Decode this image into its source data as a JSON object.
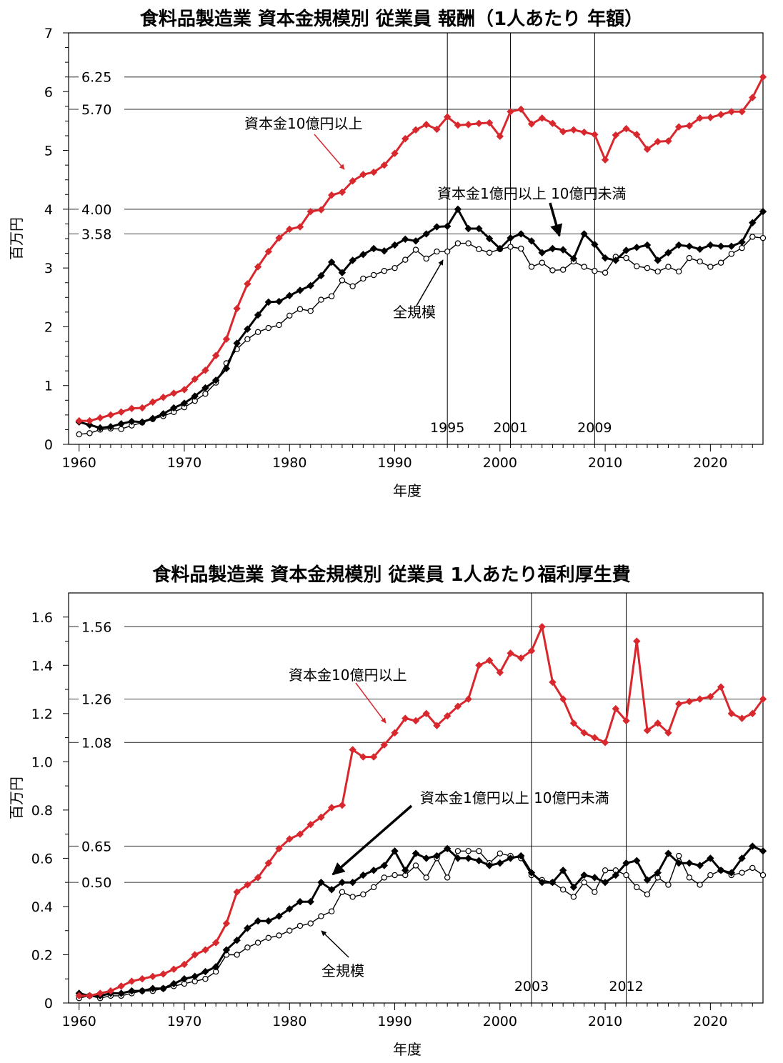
{
  "colors": {
    "red": "#d8282e",
    "black": "#000000",
    "ref_line": "#555555"
  },
  "chart_data": [
    {
      "type": "line",
      "title": "食料品製造業 資本金規模別 従業員 報酬（1人あたり 年額）",
      "xlabel": "年度",
      "ylabel": "百万円",
      "xlim": [
        1959,
        2025
      ],
      "ylim": [
        0,
        7
      ],
      "x_ticks": [
        1960,
        1970,
        1980,
        1990,
        2000,
        2010,
        2020
      ],
      "y_ticks": [
        0,
        1,
        2,
        3,
        4,
        5,
        6,
        7
      ],
      "y_tick_labels": [
        "0",
        "1",
        "2",
        "3",
        "4",
        "5",
        "6",
        "7"
      ],
      "hlines": [
        {
          "value": 6.25,
          "label": "6.25"
        },
        {
          "value": 5.7,
          "label": "5.70"
        },
        {
          "value": 4.0,
          "label": "4.00"
        },
        {
          "value": 3.58,
          "label": "3.58"
        }
      ],
      "vlines": [
        {
          "year": 1995,
          "label": "1995"
        },
        {
          "year": 2001,
          "label": "2001"
        },
        {
          "year": 2009,
          "label": "2009"
        }
      ],
      "x_start": 1960,
      "series": [
        {
          "name": "資本金10億円以上",
          "style": "red",
          "values": [
            0.4,
            0.4,
            0.45,
            0.5,
            0.55,
            0.61,
            0.62,
            0.72,
            0.8,
            0.87,
            0.93,
            1.11,
            1.26,
            1.51,
            1.79,
            2.31,
            2.73,
            3.02,
            3.28,
            3.51,
            3.66,
            3.7,
            3.96,
            3.99,
            4.24,
            4.29,
            4.48,
            4.59,
            4.63,
            4.75,
            4.95,
            5.2,
            5.35,
            5.44,
            5.36,
            5.57,
            5.43,
            5.44,
            5.46,
            5.47,
            5.24,
            5.66,
            5.7,
            5.45,
            5.55,
            5.46,
            5.32,
            5.35,
            5.31,
            5.27,
            4.84,
            5.26,
            5.37,
            5.27,
            5.02,
            5.15,
            5.16,
            5.4,
            5.42,
            5.55,
            5.56,
            5.61,
            5.66,
            5.66,
            5.9,
            6.25
          ]
        },
        {
          "name": "資本金1億円以上 10億円未満",
          "style": "black",
          "values": [
            0.38,
            0.33,
            0.28,
            0.3,
            0.35,
            0.39,
            0.38,
            0.44,
            0.52,
            0.62,
            0.7,
            0.82,
            0.96,
            1.09,
            1.29,
            1.72,
            1.96,
            2.2,
            2.42,
            2.43,
            2.53,
            2.62,
            2.7,
            2.87,
            3.1,
            2.92,
            3.13,
            3.23,
            3.33,
            3.29,
            3.39,
            3.49,
            3.46,
            3.58,
            3.7,
            3.71,
            4.0,
            3.67,
            3.67,
            3.5,
            3.33,
            3.51,
            3.58,
            3.46,
            3.26,
            3.33,
            3.31,
            3.16,
            3.58,
            3.4,
            3.17,
            3.13,
            3.3,
            3.35,
            3.39,
            3.13,
            3.26,
            3.39,
            3.37,
            3.32,
            3.39,
            3.37,
            3.37,
            3.44,
            3.77,
            3.96
          ]
        },
        {
          "name": "全規模",
          "style": "open",
          "values": [
            0.17,
            0.19,
            0.25,
            0.27,
            0.26,
            0.32,
            0.37,
            0.43,
            0.48,
            0.55,
            0.63,
            0.74,
            0.86,
            1.05,
            1.38,
            1.62,
            1.79,
            1.91,
            1.98,
            2.03,
            2.19,
            2.3,
            2.27,
            2.46,
            2.52,
            2.79,
            2.69,
            2.82,
            2.88,
            2.95,
            3.0,
            3.14,
            3.31,
            3.16,
            3.28,
            3.28,
            3.42,
            3.42,
            3.32,
            3.26,
            3.32,
            3.36,
            3.33,
            3.02,
            3.09,
            2.96,
            2.97,
            3.11,
            3.02,
            2.95,
            2.92,
            3.19,
            3.17,
            3.03,
            3.0,
            2.94,
            3.02,
            2.94,
            3.17,
            3.11,
            3.02,
            3.09,
            3.24,
            3.34,
            3.53,
            3.51
          ]
        }
      ],
      "annotations": [
        {
          "text": "資本金10億円以上",
          "style": "red"
        },
        {
          "text": "資本金1億円以上 10億円未満",
          "style": "black"
        },
        {
          "text": "全規模",
          "style": "black"
        }
      ]
    },
    {
      "type": "line",
      "title": "食料品製造業 資本金規模別 従業員 1人あたり福利厚生費",
      "xlabel": "年度",
      "ylabel": "百万円",
      "xlim": [
        1959,
        2025
      ],
      "ylim": [
        0,
        1.7
      ],
      "x_ticks": [
        1960,
        1970,
        1980,
        1990,
        2000,
        2010,
        2020
      ],
      "y_ticks": [
        0,
        0.2,
        0.4,
        0.6,
        0.8,
        1.0,
        1.2,
        1.4,
        1.6
      ],
      "y_tick_labels": [
        "0",
        "0.2",
        "0.4",
        "0.6",
        "0.8",
        "1.0",
        "1.2",
        "1.4",
        "1.6"
      ],
      "hlines": [
        {
          "value": 1.56,
          "label": "1.56"
        },
        {
          "value": 1.26,
          "label": "1.26"
        },
        {
          "value": 1.08,
          "label": "1.08"
        },
        {
          "value": 0.65,
          "label": "0.65"
        },
        {
          "value": 0.5,
          "label": "0.50"
        }
      ],
      "vlines": [
        {
          "year": 2003,
          "label": "2003"
        },
        {
          "year": 2012,
          "label": "2012"
        }
      ],
      "x_start": 1960,
      "series": [
        {
          "name": "資本金10億円以上",
          "style": "red",
          "values": [
            0.03,
            0.03,
            0.04,
            0.05,
            0.07,
            0.09,
            0.1,
            0.11,
            0.12,
            0.14,
            0.16,
            0.2,
            0.22,
            0.25,
            0.33,
            0.46,
            0.49,
            0.52,
            0.58,
            0.64,
            0.68,
            0.7,
            0.74,
            0.77,
            0.81,
            0.82,
            1.05,
            1.02,
            1.02,
            1.07,
            1.12,
            1.18,
            1.17,
            1.2,
            1.15,
            1.19,
            1.23,
            1.26,
            1.4,
            1.42,
            1.37,
            1.45,
            1.43,
            1.46,
            1.56,
            1.33,
            1.26,
            1.16,
            1.12,
            1.1,
            1.08,
            1.22,
            1.17,
            1.5,
            1.13,
            1.16,
            1.12,
            1.24,
            1.25,
            1.26,
            1.27,
            1.31,
            1.2,
            1.18,
            1.2,
            1.26
          ]
        },
        {
          "name": "資本金1億円以上 10億円未満",
          "style": "black",
          "values": [
            0.04,
            0.03,
            0.03,
            0.04,
            0.04,
            0.05,
            0.05,
            0.06,
            0.06,
            0.08,
            0.1,
            0.11,
            0.13,
            0.15,
            0.22,
            0.26,
            0.31,
            0.34,
            0.34,
            0.36,
            0.39,
            0.42,
            0.42,
            0.5,
            0.47,
            0.5,
            0.5,
            0.53,
            0.55,
            0.57,
            0.63,
            0.55,
            0.62,
            0.6,
            0.61,
            0.64,
            0.6,
            0.6,
            0.59,
            0.57,
            0.58,
            0.6,
            0.61,
            0.54,
            0.5,
            0.5,
            0.55,
            0.48,
            0.53,
            0.52,
            0.5,
            0.53,
            0.58,
            0.59,
            0.51,
            0.54,
            0.62,
            0.58,
            0.58,
            0.57,
            0.6,
            0.55,
            0.54,
            0.6,
            0.65,
            0.63
          ]
        },
        {
          "name": "全規模",
          "style": "open",
          "values": [
            0.02,
            0.03,
            0.02,
            0.03,
            0.03,
            0.04,
            0.05,
            0.05,
            0.06,
            0.07,
            0.08,
            0.09,
            0.1,
            0.13,
            0.2,
            0.2,
            0.23,
            0.25,
            0.27,
            0.28,
            0.3,
            0.32,
            0.33,
            0.36,
            0.38,
            0.46,
            0.44,
            0.45,
            0.48,
            0.52,
            0.53,
            0.53,
            0.57,
            0.52,
            0.6,
            0.52,
            0.63,
            0.63,
            0.63,
            0.58,
            0.62,
            0.61,
            0.6,
            0.53,
            0.51,
            0.5,
            0.47,
            0.44,
            0.5,
            0.46,
            0.55,
            0.55,
            0.53,
            0.48,
            0.45,
            0.52,
            0.49,
            0.61,
            0.52,
            0.49,
            0.53,
            0.55,
            0.53,
            0.54,
            0.56,
            0.53
          ]
        }
      ],
      "annotations": [
        {
          "text": "資本金10億円以上",
          "style": "red"
        },
        {
          "text": "資本金1億円以上 10億円未満",
          "style": "black"
        },
        {
          "text": "全規模",
          "style": "black"
        }
      ]
    }
  ]
}
